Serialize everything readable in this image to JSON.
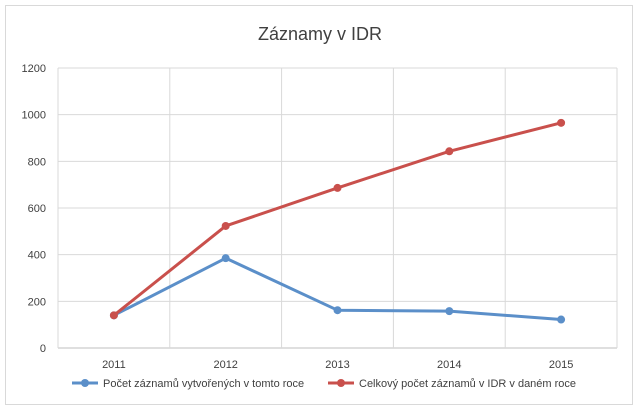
{
  "chart_data": {
    "type": "line",
    "title": "Záznamy v IDR",
    "xlabel": "",
    "ylabel": "",
    "categories": [
      "2011",
      "2012",
      "2013",
      "2014",
      "2015"
    ],
    "ylim": [
      0,
      1200
    ],
    "yticks": [
      0,
      200,
      400,
      600,
      800,
      1000,
      1200
    ],
    "grid": true,
    "legend_position": "bottom",
    "series": [
      {
        "name": "Počet záznamů vytvořených v tomto roce",
        "color": "#5b8fc9",
        "values": [
          140,
          385,
          162,
          158,
          122
        ]
      },
      {
        "name": "Celkový počet záznamů v IDR v daném roce",
        "color": "#c9504c",
        "values": [
          140,
          523,
          686,
          843,
          965
        ]
      }
    ]
  }
}
